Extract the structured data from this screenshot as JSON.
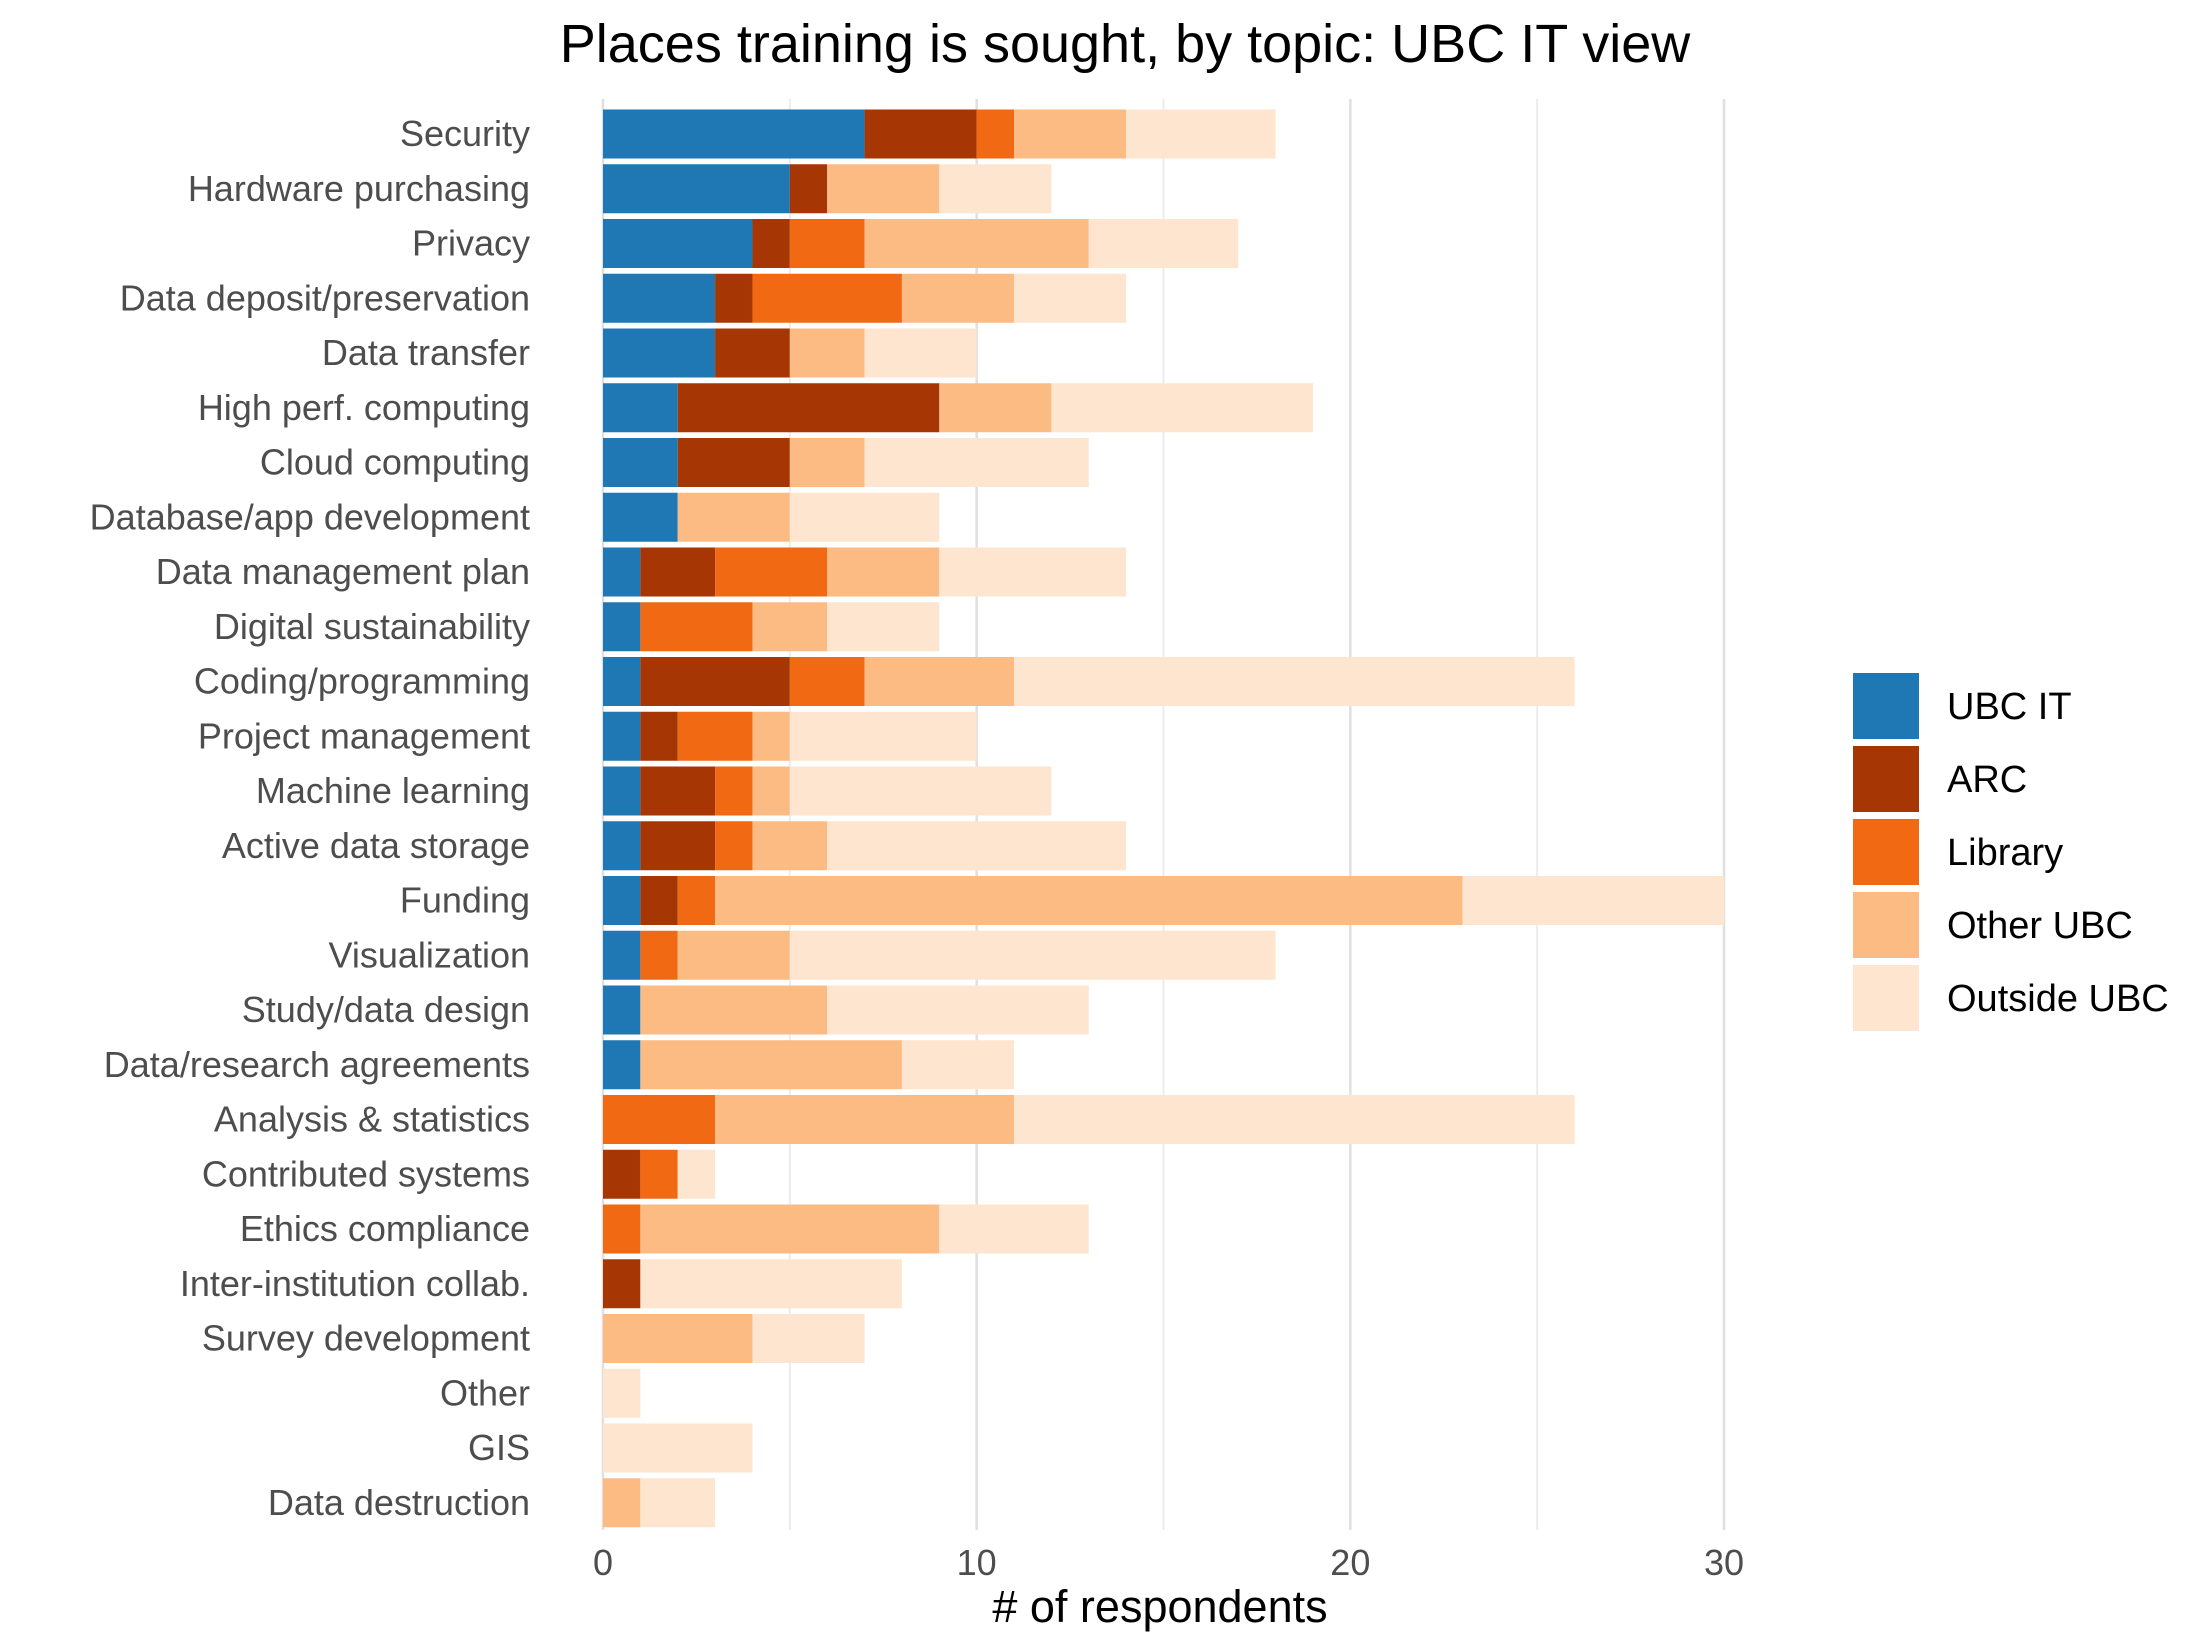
{
  "chart_data": {
    "type": "bar",
    "orientation": "horizontal",
    "stacked": true,
    "title": "Places training is sought, by topic: UBC IT view",
    "xlabel": "# of respondents",
    "ylabel": "",
    "xlim": [
      0,
      30
    ],
    "xticks": [
      0,
      10,
      20,
      30
    ],
    "grid": true,
    "legend_position": "right",
    "categories": [
      "Security",
      "Hardware purchasing",
      "Privacy",
      "Data deposit/preservation",
      "Data transfer",
      "High perf. computing",
      "Cloud computing",
      "Database/app development",
      "Data management plan",
      "Digital sustainability",
      "Coding/programming",
      "Project management",
      "Machine learning",
      "Active data storage",
      "Funding",
      "Visualization",
      "Study/data design",
      "Data/research agreements",
      "Analysis & statistics",
      "Contributed systems",
      "Ethics compliance",
      "Inter-institution collab.",
      "Survey development",
      "Other",
      "GIS",
      "Data destruction"
    ],
    "series": [
      {
        "name": "UBC IT",
        "color": "#1f77b4",
        "values": [
          7,
          5,
          4,
          3,
          3,
          2,
          2,
          2,
          1,
          1,
          1,
          1,
          1,
          1,
          1,
          1,
          1,
          1,
          0,
          0,
          0,
          0,
          0,
          0,
          0,
          0
        ]
      },
      {
        "name": "ARC",
        "color": "#a63603",
        "values": [
          3,
          1,
          1,
          1,
          2,
          7,
          3,
          0,
          2,
          0,
          4,
          1,
          2,
          2,
          1,
          0,
          0,
          0,
          0,
          1,
          0,
          1,
          0,
          0,
          0,
          0
        ]
      },
      {
        "name": "Library",
        "color": "#f16913",
        "values": [
          1,
          0,
          2,
          4,
          0,
          0,
          0,
          0,
          3,
          3,
          2,
          2,
          1,
          1,
          1,
          1,
          0,
          0,
          3,
          1,
          1,
          0,
          0,
          0,
          0,
          0
        ]
      },
      {
        "name": "Other UBC",
        "color": "#fdbb84",
        "values": [
          3,
          3,
          6,
          3,
          2,
          3,
          2,
          3,
          3,
          2,
          4,
          1,
          1,
          2,
          20,
          3,
          5,
          7,
          8,
          0,
          8,
          0,
          4,
          0,
          0,
          1
        ]
      },
      {
        "name": "Outside UBC",
        "color": "#fee5cf",
        "values": [
          4,
          3,
          4,
          3,
          3,
          7,
          6,
          4,
          5,
          3,
          15,
          5,
          7,
          8,
          7,
          13,
          7,
          3,
          15,
          1,
          4,
          7,
          3,
          1,
          4,
          2
        ]
      }
    ]
  }
}
